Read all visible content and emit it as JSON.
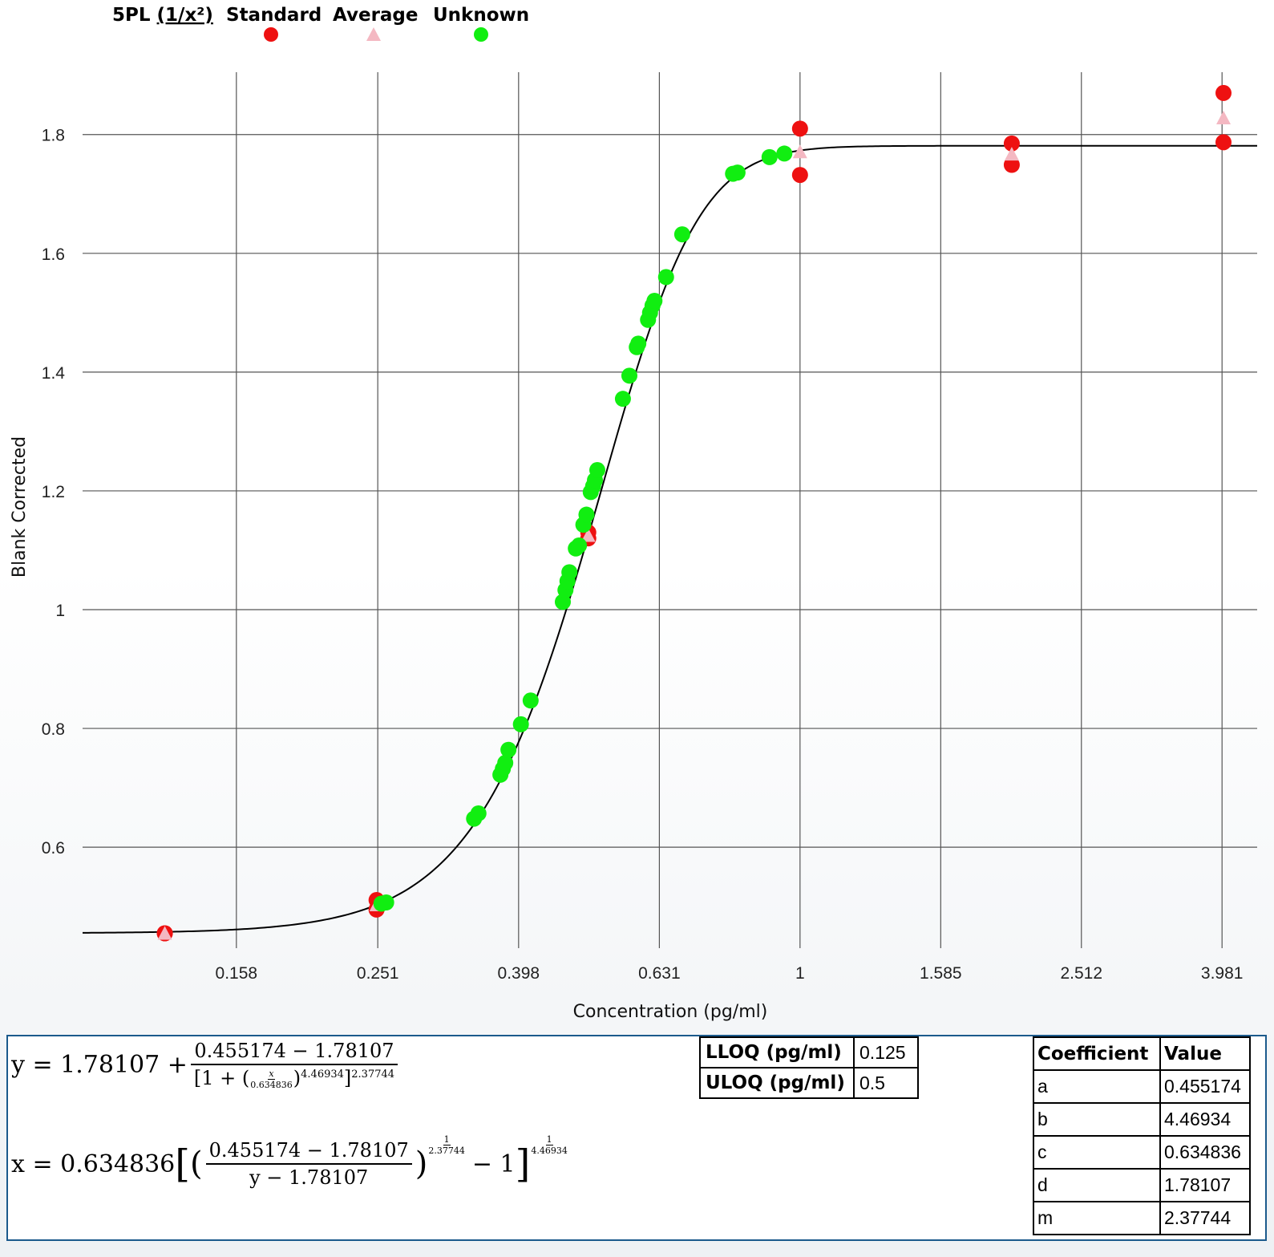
{
  "legend": {
    "model": "5PL",
    "weighting": "(1/x²)",
    "items": [
      {
        "label": "Standard",
        "color": "#ee1111",
        "marker": "circle"
      },
      {
        "label": "Average",
        "color": "#f4b8c2",
        "marker": "triangle"
      },
      {
        "label": "Unknown",
        "color": "#11ee11",
        "marker": "circle"
      }
    ]
  },
  "chart_data": {
    "type": "scatter",
    "xlabel": "Concentration (pg/ml)",
    "ylabel": "Blank Corrected",
    "x_scale": "log",
    "xlim": [
      0.0955,
      4.466
    ],
    "ylim": [
      0.43,
      1.905
    ],
    "x_ticks": [
      0.158,
      0.251,
      0.398,
      0.631,
      1,
      1.585,
      2.512,
      3.981
    ],
    "x_tick_labels": [
      "0.158",
      "0.251",
      "0.398",
      "0.631",
      "1",
      "1.585",
      "2.512",
      "3.981"
    ],
    "y_ticks": [
      0.6,
      0.8,
      1.0,
      1.2,
      1.4,
      1.6,
      1.8
    ],
    "y_tick_labels": [
      "0.6",
      "0.8",
      "1",
      "1.2",
      "1.4",
      "1.6",
      "1.8"
    ],
    "grid": true,
    "fit": {
      "a": 0.455174,
      "b": 4.46934,
      "c": 0.634836,
      "d": 1.78107,
      "m": 2.37744
    },
    "series": [
      {
        "name": "Standard",
        "points": [
          [
            0.125,
            0.455
          ],
          [
            0.125,
            0.455
          ],
          [
            0.25,
            0.511
          ],
          [
            0.25,
            0.495
          ],
          [
            0.5,
            1.13
          ],
          [
            0.5,
            1.12
          ],
          [
            1,
            1.81
          ],
          [
            1,
            1.732
          ],
          [
            2,
            1.785
          ],
          [
            2,
            1.749
          ],
          [
            4,
            1.87
          ],
          [
            4,
            1.787
          ]
        ]
      },
      {
        "name": "Average",
        "points": [
          [
            0.125,
            0.455
          ],
          [
            0.25,
            0.503
          ],
          [
            0.5,
            1.125
          ],
          [
            1,
            1.771
          ],
          [
            2,
            1.767
          ],
          [
            4,
            1.828
          ]
        ]
      },
      {
        "name": "Unknown",
        "points": [
          [
            0.254,
            0.505
          ],
          [
            0.258,
            0.507
          ],
          [
            0.344,
            0.648
          ],
          [
            0.349,
            0.657
          ],
          [
            0.375,
            0.722
          ],
          [
            0.378,
            0.732
          ],
          [
            0.381,
            0.742
          ],
          [
            0.385,
            0.764
          ],
          [
            0.401,
            0.807
          ],
          [
            0.414,
            0.847
          ],
          [
            0.46,
            1.013
          ],
          [
            0.464,
            1.033
          ],
          [
            0.467,
            1.048
          ],
          [
            0.47,
            1.063
          ],
          [
            0.48,
            1.103
          ],
          [
            0.485,
            1.108
          ],
          [
            0.492,
            1.143
          ],
          [
            0.497,
            1.16
          ],
          [
            0.504,
            1.198
          ],
          [
            0.508,
            1.208
          ],
          [
            0.511,
            1.218
          ],
          [
            0.515,
            1.235
          ],
          [
            0.56,
            1.355
          ],
          [
            0.572,
            1.394
          ],
          [
            0.586,
            1.442
          ],
          [
            0.589,
            1.448
          ],
          [
            0.608,
            1.488
          ],
          [
            0.612,
            1.5
          ],
          [
            0.617,
            1.512
          ],
          [
            0.621,
            1.52
          ],
          [
            0.645,
            1.56
          ],
          [
            0.68,
            1.632
          ],
          [
            0.803,
            1.734
          ],
          [
            0.815,
            1.736
          ],
          [
            0.905,
            1.762
          ],
          [
            0.95,
            1.768
          ]
        ]
      }
    ]
  },
  "equations": {
    "y_eq": {
      "lhs": "y = 1.78107 +",
      "num": "0.455174 − 1.78107",
      "den_open": "[1 + (",
      "x_var": "x",
      "c_val": "0.634836",
      "b_exp": "4.46934",
      "m_exp": "2.37744"
    },
    "x_eq": {
      "lhs": "x = 0.634836",
      "num": "0.455174 − 1.78107",
      "den": "y − 1.78107",
      "inner_exp_num": "1",
      "inner_exp_den": "2.37744",
      "minus_one": "− 1",
      "outer_exp_num": "1",
      "outer_exp_den": "4.46934"
    }
  },
  "loq_table": [
    {
      "label": "LLOQ (pg/ml)",
      "value": "0.125"
    },
    {
      "label": "ULOQ (pg/ml)",
      "value": "0.5"
    }
  ],
  "coef_table": {
    "headers": [
      "Coefficient",
      "Value"
    ],
    "rows": [
      [
        "a",
        "0.455174"
      ],
      [
        "b",
        "4.46934"
      ],
      [
        "c",
        "0.634836"
      ],
      [
        "d",
        "1.78107"
      ],
      [
        "m",
        "2.37744"
      ]
    ]
  }
}
